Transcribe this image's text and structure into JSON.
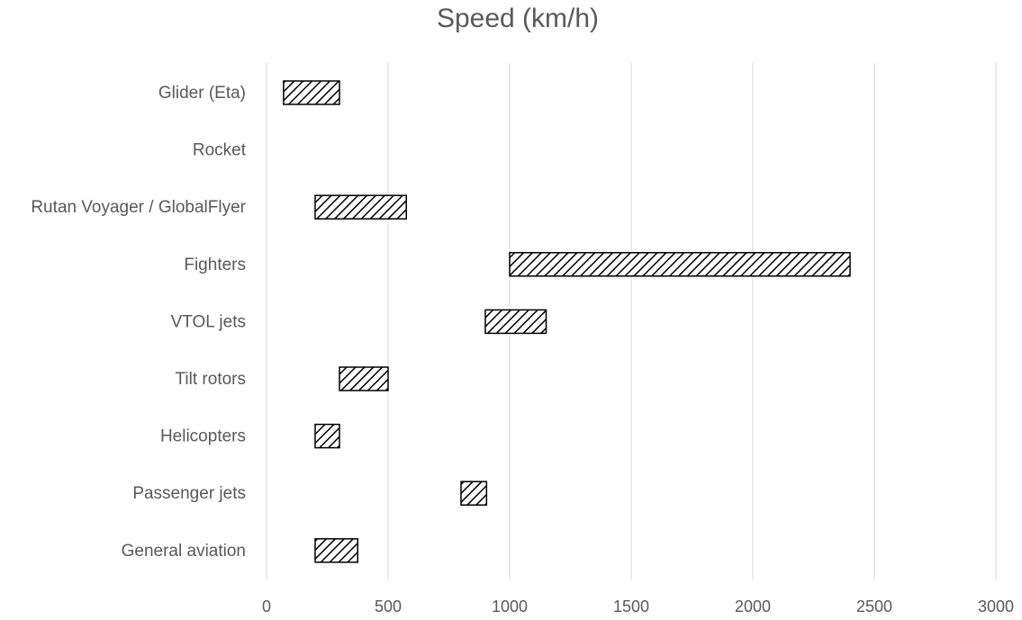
{
  "chart_data": {
    "type": "bar",
    "orientation": "horizontal",
    "title": "Speed (km/h)",
    "xlabel": "",
    "ylabel": "",
    "xlim": [
      0,
      3000
    ],
    "x_ticks": [
      0,
      500,
      1000,
      1500,
      2000,
      2500,
      3000
    ],
    "grid": true,
    "legend": "none",
    "categories": [
      "Glider (Eta)",
      "Rocket",
      "Rutan Voyager / GlobalFlyer",
      "Fighters",
      "VTOL jets",
      "Tilt rotors",
      "Helicopters",
      "Passenger jets",
      "General aviation"
    ],
    "ranges": [
      [
        70,
        300
      ],
      null,
      [
        200,
        575
      ],
      [
        1000,
        2400
      ],
      [
        900,
        1150
      ],
      [
        300,
        500
      ],
      [
        200,
        300
      ],
      [
        800,
        905
      ],
      [
        200,
        375
      ]
    ],
    "bar_fill": "diagonal-hatch",
    "colors": {
      "bar_stroke": "#000000",
      "hatch": "#000000",
      "text": "#595959",
      "grid": "#d9d9d9"
    }
  }
}
